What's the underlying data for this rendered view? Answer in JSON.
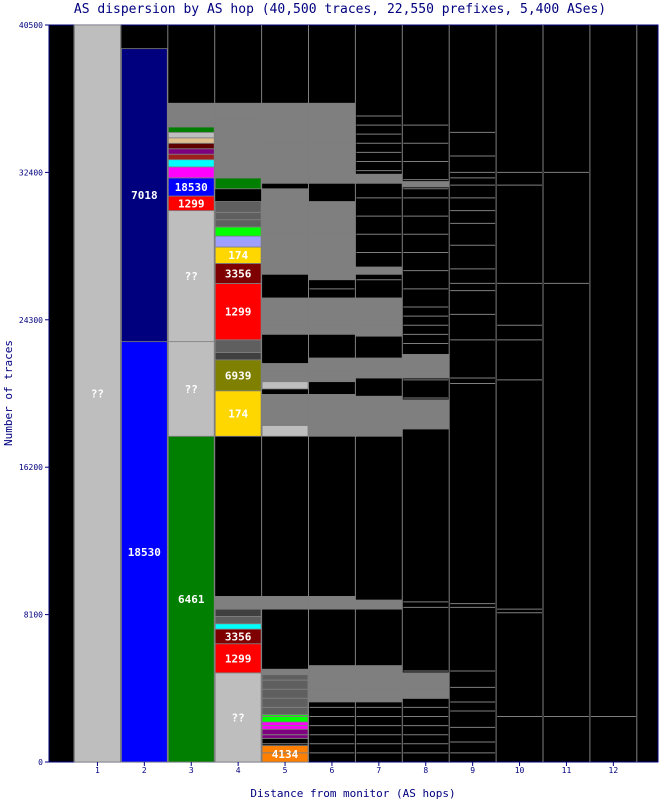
{
  "chart_data": {
    "type": "bar",
    "title": "AS dispersion by AS hop (40,500 traces, 22,550 prefixes, 5,400 ASes)",
    "xlabel": "Distance from monitor (AS hops)",
    "ylabel": "Number of traces",
    "ylim": [
      0,
      40500
    ],
    "yticks": [
      "0",
      "8100",
      "16200",
      "24300",
      "32400",
      "40500"
    ],
    "categories": [
      "1",
      "2",
      "3",
      "4",
      "5",
      "6",
      "7",
      "8",
      "9",
      "10",
      "11",
      "12"
    ],
    "background": "#000000",
    "segment_border": "#7f7f7f",
    "stacks": [
      {
        "hop": "1",
        "segments": [
          {
            "from": 0,
            "to": 40500,
            "color": "#bebebe",
            "label": "??"
          }
        ]
      },
      {
        "hop": "2",
        "segments": [
          {
            "from": 0,
            "to": 23100,
            "color": "#0000ff",
            "label": "18530"
          },
          {
            "from": 23100,
            "to": 39200,
            "color": "#00007f",
            "label": "7018"
          }
        ]
      },
      {
        "hop": "3",
        "segments": [
          {
            "from": 0,
            "to": 17900,
            "color": "#007f00",
            "label": "6461"
          },
          {
            "from": 17900,
            "to": 23100,
            "color": "#bebebe",
            "label": "??"
          },
          {
            "from": 23100,
            "to": 30300,
            "color": "#bebebe",
            "label": "??"
          },
          {
            "from": 30300,
            "to": 31100,
            "color": "#ff0000",
            "label": "1299"
          },
          {
            "from": 31100,
            "to": 32100,
            "color": "#0000ff",
            "label": "18530"
          },
          {
            "from": 32100,
            "to": 32700,
            "color": "#ff00ff",
            "label": ""
          },
          {
            "from": 32700,
            "to": 33100,
            "color": "#00ffff",
            "label": ""
          },
          {
            "from": 33100,
            "to": 33400,
            "color": "#9f1f1f",
            "label": ""
          },
          {
            "from": 33400,
            "to": 33700,
            "color": "#7f007f",
            "label": ""
          },
          {
            "from": 33700,
            "to": 34000,
            "color": "#5f0000",
            "label": ""
          },
          {
            "from": 34000,
            "to": 34300,
            "color": "#e0c090",
            "label": ""
          },
          {
            "from": 34300,
            "to": 34600,
            "color": "#bebebe",
            "label": ""
          },
          {
            "from": 34600,
            "to": 34900,
            "color": "#007f00",
            "label": ""
          },
          {
            "from": 34900,
            "to": 36200,
            "color": "#7f7f7f",
            "label": ""
          }
        ]
      },
      {
        "hop": "4",
        "segments": [
          {
            "from": 0,
            "to": 4900,
            "color": "#bebebe",
            "label": "??"
          },
          {
            "from": 4900,
            "to": 6500,
            "color": "#ff0000",
            "label": "1299"
          },
          {
            "from": 6500,
            "to": 7300,
            "color": "#7f0000",
            "label": "3356"
          },
          {
            "from": 7300,
            "to": 7600,
            "color": "#00ffff",
            "label": ""
          },
          {
            "from": 7600,
            "to": 8000,
            "color": "#5f5f5f",
            "label": ""
          },
          {
            "from": 8000,
            "to": 8400,
            "color": "#3f3f3f",
            "label": ""
          },
          {
            "from": 8400,
            "to": 9100,
            "color": "#7f7f7f",
            "label": ""
          },
          {
            "from": 17900,
            "to": 20400,
            "color": "#ffd700",
            "label": "174"
          },
          {
            "from": 20400,
            "to": 22100,
            "color": "#7f7f00",
            "label": "6939"
          },
          {
            "from": 22100,
            "to": 22500,
            "color": "#3f3f3f",
            "label": ""
          },
          {
            "from": 22500,
            "to": 23200,
            "color": "#5f5f5f",
            "label": ""
          },
          {
            "from": 23200,
            "to": 26300,
            "color": "#ff0000",
            "label": "1299"
          },
          {
            "from": 26300,
            "to": 27400,
            "color": "#7f0000",
            "label": "3356"
          },
          {
            "from": 27400,
            "to": 28300,
            "color": "#ffd700",
            "label": "174"
          },
          {
            "from": 28300,
            "to": 28900,
            "color": "#9f9fff",
            "label": ""
          },
          {
            "from": 28900,
            "to": 29400,
            "color": "#00ff00",
            "label": ""
          },
          {
            "from": 29400,
            "to": 30800,
            "color": "#5f5f5f",
            "label": ""
          },
          {
            "from": 31500,
            "to": 32100,
            "color": "#007f00",
            "label": ""
          },
          {
            "from": 32100,
            "to": 36200,
            "color": "#7f7f7f",
            "label": ""
          }
        ]
      },
      {
        "hop": "5",
        "segments": [
          {
            "from": 0,
            "to": 900,
            "color": "#ff7f00",
            "label": "4134"
          },
          {
            "from": 900,
            "to": 1300,
            "color": "#000000",
            "label": ""
          },
          {
            "from": 1300,
            "to": 1800,
            "color": "#7f007f",
            "label": ""
          },
          {
            "from": 1800,
            "to": 2200,
            "color": "#ff00ff",
            "label": ""
          },
          {
            "from": 2200,
            "to": 2600,
            "color": "#00ff00",
            "label": ""
          },
          {
            "from": 2600,
            "to": 4800,
            "color": "#5f5f5f",
            "label": ""
          },
          {
            "from": 4800,
            "to": 5100,
            "color": "#7f7f7f",
            "label": ""
          },
          {
            "from": 8400,
            "to": 9100,
            "color": "#7f7f7f",
            "label": ""
          },
          {
            "from": 17900,
            "to": 18500,
            "color": "#bebebe",
            "label": ""
          },
          {
            "from": 18500,
            "to": 20200,
            "color": "#7f7f7f",
            "label": ""
          },
          {
            "from": 20500,
            "to": 20900,
            "color": "#bebebe",
            "label": ""
          },
          {
            "from": 20900,
            "to": 21900,
            "color": "#7f7f7f",
            "label": ""
          },
          {
            "from": 23500,
            "to": 25500,
            "color": "#7f7f7f",
            "label": ""
          },
          {
            "from": 26800,
            "to": 31500,
            "color": "#7f7f7f",
            "label": ""
          },
          {
            "from": 31800,
            "to": 36200,
            "color": "#7f7f7f",
            "label": ""
          }
        ]
      },
      {
        "hop": "6",
        "segments": [
          {
            "from": 3300,
            "to": 5300,
            "color": "#7f7f7f",
            "label": ""
          },
          {
            "from": 8400,
            "to": 9100,
            "color": "#7f7f7f",
            "label": ""
          },
          {
            "from": 17900,
            "to": 20200,
            "color": "#7f7f7f",
            "label": ""
          },
          {
            "from": 20900,
            "to": 22200,
            "color": "#7f7f7f",
            "label": ""
          },
          {
            "from": 23500,
            "to": 25500,
            "color": "#7f7f7f",
            "label": ""
          },
          {
            "from": 26500,
            "to": 30800,
            "color": "#7f7f7f",
            "label": ""
          },
          {
            "from": 31800,
            "to": 36200,
            "color": "#7f7f7f",
            "label": ""
          }
        ]
      },
      {
        "hop": "7",
        "segments": [
          {
            "from": 3300,
            "to": 5300,
            "color": "#7f7f7f",
            "label": ""
          },
          {
            "from": 8400,
            "to": 8900,
            "color": "#7f7f7f",
            "label": ""
          },
          {
            "from": 17900,
            "to": 20100,
            "color": "#7f7f7f",
            "label": ""
          },
          {
            "from": 21100,
            "to": 22200,
            "color": "#7f7f7f",
            "label": ""
          },
          {
            "from": 23400,
            "to": 25500,
            "color": "#7f7f7f",
            "label": ""
          },
          {
            "from": 26800,
            "to": 27200,
            "color": "#7f7f7f",
            "label": ""
          },
          {
            "from": 31800,
            "to": 32300,
            "color": "#7f7f7f",
            "label": ""
          }
        ]
      },
      {
        "hop": "8",
        "segments": [
          {
            "from": 3500,
            "to": 4900,
            "color": "#7f7f7f",
            "label": ""
          },
          {
            "from": 18300,
            "to": 19900,
            "color": "#7f7f7f",
            "label": ""
          },
          {
            "from": 21100,
            "to": 22400,
            "color": "#7f7f7f",
            "label": ""
          },
          {
            "from": 31600,
            "to": 31900,
            "color": "#7f7f7f",
            "label": ""
          }
        ]
      }
    ],
    "divider_lines": [
      {
        "hop": "3",
        "values": [
          36000,
          35600
        ]
      },
      {
        "hop": "4",
        "values": [
          29800,
          30200,
          35000,
          35400,
          35800,
          8600,
          8800
        ]
      },
      {
        "hop": "5",
        "values": [
          36000,
          35500,
          35000,
          34500,
          34000,
          33500,
          33000,
          32500,
          30000,
          29500,
          29000,
          28500,
          28000,
          27500,
          25000,
          24500,
          24000,
          21500,
          21200,
          20000,
          19500,
          19000,
          18500,
          8800,
          4500,
          4000,
          3500,
          3000,
          2500,
          2000,
          1500,
          1000,
          500
        ]
      },
      {
        "hop": "6",
        "values": [
          36000,
          35500,
          35000,
          34500,
          34000,
          33000,
          32000,
          30500,
          30000,
          29000,
          28000,
          27000,
          26000,
          25000,
          24000,
          22000,
          21500,
          21000,
          20000,
          19500,
          19000,
          18500,
          18000,
          8800,
          5000,
          4500,
          4000,
          3500,
          3000,
          2500,
          2000,
          1500,
          1000,
          500
        ]
      },
      {
        "hop": "7",
        "values": [
          35500,
          35000,
          34500,
          34000,
          33500,
          33000,
          32500,
          32000,
          31000,
          30000,
          29000,
          28000,
          27000,
          26500,
          25000,
          24500,
          24000,
          23600,
          22000,
          21500,
          20000,
          19500,
          19000,
          18500,
          8800,
          5000,
          4500,
          4000,
          3500,
          3000,
          2500,
          2000,
          1500,
          1000,
          500
        ]
      },
      {
        "hop": "8",
        "values": [
          35000,
          34000,
          33000,
          32000,
          31500,
          31000,
          30000,
          29000,
          28000,
          27000,
          26000,
          25000,
          24500,
          24000,
          23500,
          23000,
          22000,
          21500,
          21000,
          20000,
          19500,
          19000,
          18500,
          8800,
          8500,
          5000,
          4500,
          4000,
          3500,
          3000,
          2500,
          2000,
          1500,
          1000,
          500
        ]
      },
      {
        "hop": "9",
        "values": [
          34600,
          33300,
          32400,
          32100,
          31700,
          31000,
          30300,
          29600,
          28400,
          27100,
          26300,
          25900,
          24600,
          23200,
          21100,
          20800,
          8700,
          8500,
          5000,
          4100,
          3300,
          2800,
          1900,
          1100,
          500
        ]
      },
      {
        "hop": "10",
        "values": [
          32400,
          31700,
          26300,
          24000,
          23200,
          21000,
          8400,
          8200,
          2500
        ]
      },
      {
        "hop": "11",
        "values": [
          32400,
          26300,
          2500
        ]
      },
      {
        "hop": "12",
        "values": [
          2500
        ]
      }
    ]
  }
}
